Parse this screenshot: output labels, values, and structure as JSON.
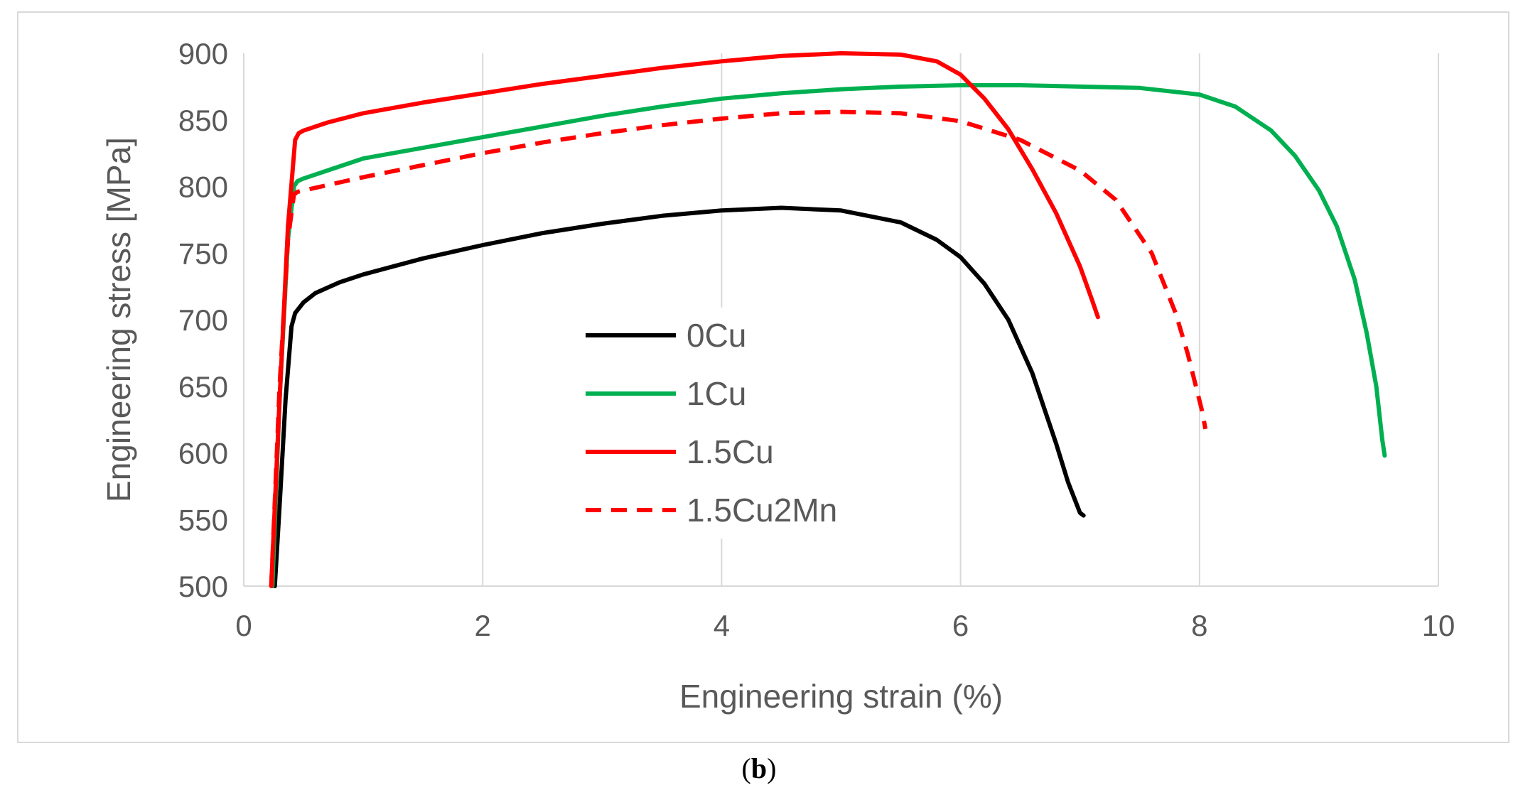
{
  "chart_data": {
    "type": "line",
    "title": "",
    "xlabel": "Engineering strain (%)",
    "ylabel": "Engineering stress [MPa]",
    "xlim": [
      0,
      10
    ],
    "ylim": [
      500,
      900
    ],
    "xticks": [
      0,
      2,
      4,
      6,
      8,
      10
    ],
    "yticks": [
      500,
      550,
      600,
      650,
      700,
      750,
      800,
      850,
      900
    ],
    "grid": "vertical",
    "legend_position": "center",
    "series": [
      {
        "name": "0Cu",
        "color": "#000000",
        "dash": "solid",
        "x": [
          0.26,
          0.3,
          0.35,
          0.4,
          0.43,
          0.5,
          0.6,
          0.8,
          1.0,
          1.5,
          2.0,
          2.5,
          3.0,
          3.5,
          4.0,
          4.5,
          5.0,
          5.5,
          5.8,
          6.0,
          6.2,
          6.4,
          6.6,
          6.8,
          6.9,
          7.0,
          7.03
        ],
        "y": [
          500,
          560,
          640,
          695,
          705,
          713,
          720,
          728,
          734,
          746,
          756,
          765,
          772,
          778,
          782,
          784,
          782,
          773,
          760,
          747,
          727,
          700,
          660,
          607,
          578,
          555,
          553
        ]
      },
      {
        "name": "1Cu",
        "color": "#00b050",
        "dash": "solid",
        "x": [
          0.24,
          0.3,
          0.37,
          0.42,
          0.45,
          0.5,
          0.7,
          1.0,
          1.5,
          2.0,
          2.5,
          3.0,
          3.5,
          4.0,
          4.5,
          5.0,
          5.5,
          6.0,
          6.5,
          7.0,
          7.5,
          8.0,
          8.3,
          8.6,
          8.8,
          9.0,
          9.15,
          9.3,
          9.4,
          9.48,
          9.53,
          9.55
        ],
        "y": [
          500,
          640,
          760,
          800,
          804,
          806,
          812,
          821,
          829,
          837,
          845,
          853,
          860,
          866,
          870,
          873,
          875,
          876,
          876,
          875,
          874,
          869,
          860,
          842,
          823,
          797,
          770,
          730,
          690,
          650,
          610,
          598
        ]
      },
      {
        "name": "1.5Cu",
        "color": "#ff0000",
        "dash": "solid",
        "x": [
          0.23,
          0.3,
          0.37,
          0.43,
          0.46,
          0.5,
          0.7,
          1.0,
          1.5,
          2.0,
          2.5,
          3.0,
          3.5,
          4.0,
          4.5,
          5.0,
          5.5,
          5.8,
          6.0,
          6.2,
          6.4,
          6.6,
          6.8,
          6.9,
          7.0,
          7.1,
          7.15
        ],
        "y": [
          500,
          640,
          770,
          835,
          840,
          842,
          848,
          855,
          863,
          870,
          877,
          883,
          889,
          894,
          898,
          900,
          899,
          894,
          884,
          866,
          843,
          813,
          780,
          760,
          740,
          715,
          702
        ]
      },
      {
        "name": "1.5Cu2Mn",
        "color": "#ff0000",
        "dash": "dashed",
        "x": [
          0.23,
          0.3,
          0.37,
          0.42,
          0.45,
          0.5,
          0.7,
          1.0,
          1.5,
          2.0,
          2.5,
          3.0,
          3.5,
          4.0,
          4.5,
          5.0,
          5.5,
          6.0,
          6.5,
          7.0,
          7.3,
          7.6,
          7.8,
          7.9,
          7.97,
          8.02,
          8.05
        ],
        "y": [
          500,
          650,
          760,
          794,
          796,
          797,
          801,
          807,
          816,
          825,
          833,
          840,
          846,
          851,
          855,
          856,
          855,
          849,
          835,
          812,
          790,
          750,
          705,
          675,
          650,
          632,
          618
        ]
      }
    ]
  },
  "caption": {
    "open": "(",
    "letter": "b",
    "close": ")"
  }
}
